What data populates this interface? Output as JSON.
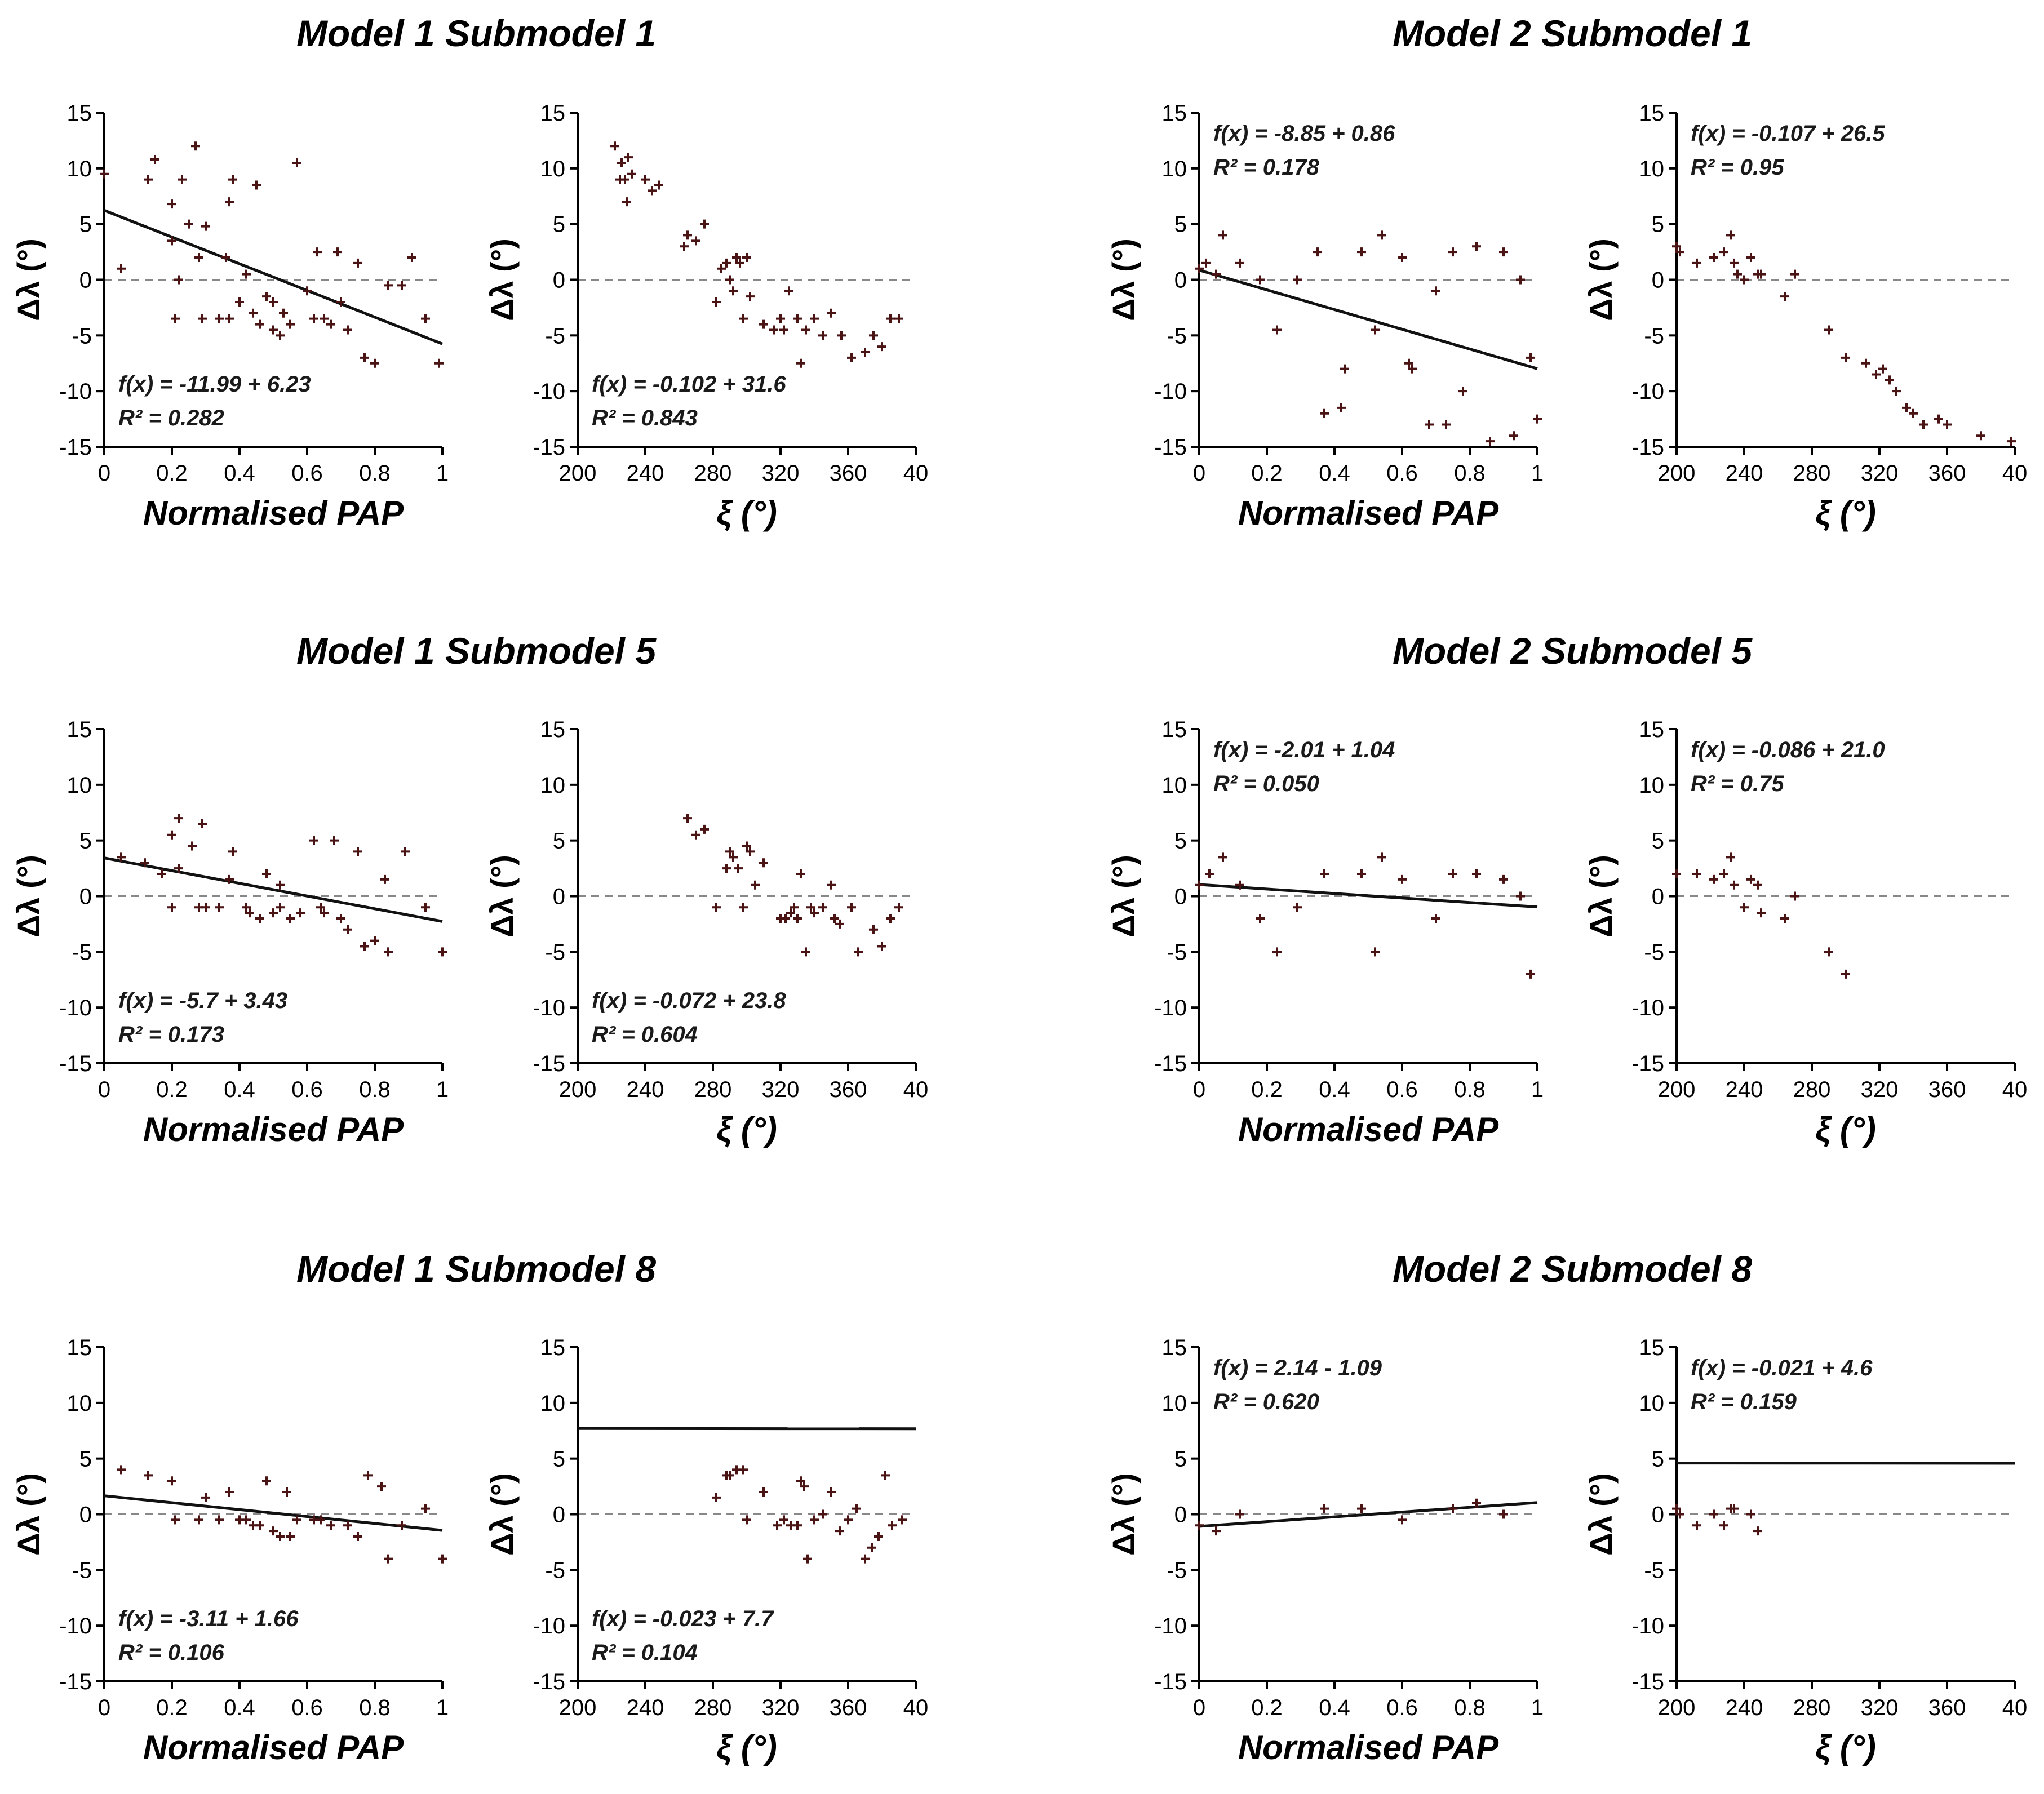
{
  "panel_titles": [
    "Model 1 Submodel 1",
    "Model 2 Submodel 1",
    "Model 1 Submodel 5",
    "Model 2 Submodel 5",
    "Model 1 Submodel 8",
    "Model 2 Submodel 8"
  ],
  "colors": {
    "points": "#4a1414",
    "fit_line": "#111111",
    "zero_line": "#888888"
  },
  "chart_data": [
    {
      "type": "scatter",
      "panel": "Model 1 Submodel 1",
      "xlabel": "Normalised PAP",
      "ylabel": "Δλ (°)",
      "xlim": [
        0,
        1
      ],
      "ylim": [
        -15,
        15
      ],
      "x_ticks": [
        "0",
        "0.2",
        "0.4",
        "0.6",
        "0.8",
        "1"
      ],
      "y_ticks": [
        "15",
        "10",
        "5",
        "0",
        "-5",
        "-10",
        "-15"
      ],
      "equation": "f(x) = -11.99 + 6.23",
      "r2_label": "R² = 0.282",
      "annotation_position": "bottom-left",
      "fit": {
        "slope": -11.99,
        "intercept": 6.23
      },
      "x": [
        0.0,
        0.05,
        0.13,
        0.15,
        0.2,
        0.2,
        0.21,
        0.22,
        0.23,
        0.25,
        0.27,
        0.28,
        0.29,
        0.3,
        0.34,
        0.36,
        0.37,
        0.37,
        0.38,
        0.4,
        0.42,
        0.44,
        0.45,
        0.46,
        0.48,
        0.5,
        0.5,
        0.52,
        0.53,
        0.55,
        0.57,
        0.6,
        0.62,
        0.63,
        0.65,
        0.67,
        0.69,
        0.7,
        0.72,
        0.75,
        0.77,
        0.8,
        0.84,
        0.88,
        0.91,
        0.95,
        0.99
      ],
      "y": [
        9.5,
        1.0,
        9.0,
        10.8,
        3.5,
        6.8,
        -3.5,
        0.0,
        9.0,
        5.0,
        12.0,
        2.0,
        -3.5,
        4.8,
        -3.5,
        2.0,
        -3.5,
        7.0,
        9.0,
        -2.0,
        0.5,
        -3.0,
        8.5,
        -4.0,
        -1.5,
        -2.0,
        -4.5,
        -5.0,
        -3.0,
        -4.0,
        10.5,
        -1.0,
        -3.5,
        2.5,
        -3.5,
        -4.0,
        2.5,
        -2.0,
        -4.5,
        1.5,
        -7.0,
        -7.5,
        -0.5,
        -0.5,
        2.0,
        -3.5,
        -7.5
      ]
    },
    {
      "type": "scatter",
      "panel": "Model 1 Submodel 1",
      "xlabel": "ξ (°)",
      "ylabel": "Δλ (°)",
      "xlim": [
        200,
        400
      ],
      "ylim": [
        -15,
        15
      ],
      "x_ticks": [
        "200",
        "240",
        "280",
        "320",
        "360",
        "40"
      ],
      "y_ticks": [
        "15",
        "10",
        "5",
        "0",
        "-5",
        "-10",
        "-15"
      ],
      "equation": "f(x) = -0.102 + 31.6",
      "r2_label": "R² = 0.843",
      "annotation_position": "bottom-left",
      "fit": {
        "slope": -0.102,
        "intercept": 31.6
      },
      "x": [
        222,
        225,
        226,
        228,
        229,
        230,
        232,
        240,
        244,
        248,
        263,
        265,
        270,
        275,
        282,
        285,
        288,
        290,
        292,
        294,
        296,
        298,
        300,
        302,
        310,
        316,
        320,
        322,
        325,
        330,
        332,
        335,
        340,
        345,
        350,
        356,
        362,
        370,
        375,
        380,
        385,
        390
      ],
      "y": [
        12.0,
        9.0,
        10.5,
        9.0,
        7.0,
        11.0,
        9.5,
        9.0,
        8.0,
        8.5,
        3.0,
        4.0,
        3.5,
        5.0,
        -2.0,
        1.0,
        1.5,
        0.0,
        -1.0,
        2.0,
        1.5,
        -3.5,
        2.0,
        -1.5,
        -4.0,
        -4.5,
        -3.5,
        -4.5,
        -1.0,
        -3.5,
        -7.5,
        -4.5,
        -3.5,
        -5.0,
        -3.0,
        -5.0,
        -7.0,
        -6.5,
        -5.0,
        -6.0,
        -3.5,
        -3.5
      ]
    },
    {
      "type": "scatter",
      "panel": "Model 2 Submodel 1",
      "xlabel": "Normalised PAP",
      "ylabel": "Δλ (°)",
      "xlim": [
        0,
        1
      ],
      "ylim": [
        -15,
        15
      ],
      "x_ticks": [
        "0",
        "0.2",
        "0.4",
        "0.6",
        "0.8",
        "1"
      ],
      "y_ticks": [
        "15",
        "10",
        "5",
        "0",
        "-5",
        "-10",
        "-15"
      ],
      "equation": "f(x) = -8.85 + 0.86",
      "r2_label": "R² = 0.178",
      "annotation_position": "top-left",
      "fit": {
        "slope": -8.85,
        "intercept": 0.86
      },
      "x": [
        0.0,
        0.02,
        0.05,
        0.07,
        0.12,
        0.18,
        0.23,
        0.29,
        0.35,
        0.37,
        0.42,
        0.43,
        0.48,
        0.52,
        0.54,
        0.6,
        0.62,
        0.63,
        0.68,
        0.7,
        0.73,
        0.75,
        0.78,
        0.82,
        0.86,
        0.9,
        0.93,
        0.95,
        0.98,
        1.0
      ],
      "y": [
        1.0,
        1.5,
        0.5,
        4.0,
        1.5,
        0.0,
        -4.5,
        0.0,
        2.5,
        -12.0,
        -11.5,
        -8.0,
        2.5,
        -4.5,
        4.0,
        2.0,
        -7.5,
        -8.0,
        -13.0,
        -1.0,
        -13.0,
        2.5,
        -10.0,
        3.0,
        -14.5,
        2.5,
        -14.0,
        0.0,
        -7.0,
        -12.5
      ]
    },
    {
      "type": "scatter",
      "panel": "Model 2 Submodel 1",
      "xlabel": "ξ (°)",
      "ylabel": "Δλ (°)",
      "xlim": [
        200,
        400
      ],
      "ylim": [
        -15,
        15
      ],
      "x_ticks": [
        "200",
        "240",
        "280",
        "320",
        "360",
        "40"
      ],
      "y_ticks": [
        "15",
        "10",
        "5",
        "0",
        "-5",
        "-10",
        "-15"
      ],
      "equation": "f(x) = -0.107 + 26.5",
      "r2_label": "R² = 0.95",
      "annotation_position": "top-left",
      "fit": {
        "slope": -0.107,
        "intercept": 26.5
      },
      "x": [
        200,
        202,
        212,
        222,
        228,
        232,
        234,
        236,
        240,
        244,
        248,
        250,
        264,
        270,
        290,
        300,
        312,
        318,
        322,
        326,
        330,
        336,
        340,
        346,
        355,
        360,
        380,
        398
      ],
      "y": [
        3.0,
        2.5,
        1.5,
        2.0,
        2.5,
        4.0,
        1.5,
        0.5,
        0.0,
        2.0,
        0.5,
        0.5,
        -1.5,
        0.5,
        -4.5,
        -7.0,
        -7.5,
        -8.5,
        -8.0,
        -9.0,
        -10.0,
        -11.5,
        -12.0,
        -13.0,
        -12.5,
        -13.0,
        -14.0,
        -14.5
      ]
    },
    {
      "type": "scatter",
      "panel": "Model 1 Submodel 5",
      "xlabel": "Normalised PAP",
      "ylabel": "Δλ (°)",
      "xlim": [
        0,
        1
      ],
      "ylim": [
        -15,
        15
      ],
      "x_ticks": [
        "0",
        "0.2",
        "0.4",
        "0.6",
        "0.8",
        "1"
      ],
      "y_ticks": [
        "15",
        "10",
        "5",
        "0",
        "-5",
        "-10",
        "-15"
      ],
      "equation": "f(x) = -5.7 + 3.43",
      "r2_label": "R² = 0.173",
      "annotation_position": "bottom-left",
      "fit": {
        "slope": -5.7,
        "intercept": 3.43
      },
      "x": [
        0.05,
        0.12,
        0.17,
        0.2,
        0.2,
        0.22,
        0.22,
        0.26,
        0.28,
        0.29,
        0.3,
        0.34,
        0.37,
        0.38,
        0.42,
        0.43,
        0.46,
        0.48,
        0.5,
        0.52,
        0.52,
        0.55,
        0.58,
        0.62,
        0.64,
        0.65,
        0.68,
        0.7,
        0.72,
        0.75,
        0.77,
        0.8,
        0.83,
        0.84,
        0.89,
        0.95,
        1.0
      ],
      "y": [
        3.5,
        3.0,
        2.0,
        5.5,
        -1.0,
        7.0,
        2.5,
        4.5,
        -1.0,
        6.5,
        -1.0,
        -1.0,
        1.5,
        4.0,
        -1.0,
        -1.5,
        -2.0,
        2.0,
        -1.5,
        1.0,
        -1.0,
        -2.0,
        -1.5,
        5.0,
        -1.0,
        -1.5,
        5.0,
        -2.0,
        -3.0,
        4.0,
        -4.5,
        -4.0,
        1.5,
        -5.0,
        4.0,
        -1.0,
        -5.0
      ]
    },
    {
      "type": "scatter",
      "panel": "Model 1 Submodel 5",
      "xlabel": "ξ (°)",
      "ylabel": "Δλ (°)",
      "xlim": [
        200,
        400
      ],
      "ylim": [
        -15,
        15
      ],
      "x_ticks": [
        "200",
        "240",
        "280",
        "320",
        "360",
        "40"
      ],
      "y_ticks": [
        "15",
        "10",
        "5",
        "0",
        "-5",
        "-10",
        "-15"
      ],
      "equation": "f(x) = -0.072 + 23.8",
      "r2_label": "R² = 0.604",
      "annotation_position": "bottom-left",
      "fit": {
        "slope": -0.072,
        "intercept": 23.8
      },
      "x": [
        265,
        270,
        275,
        282,
        288,
        290,
        292,
        295,
        298,
        300,
        302,
        305,
        310,
        320,
        323,
        326,
        328,
        330,
        332,
        335,
        338,
        340,
        345,
        350,
        352,
        355,
        362,
        366,
        375,
        380,
        385,
        390
      ],
      "y": [
        7.0,
        5.5,
        6.0,
        -1.0,
        2.5,
        4.0,
        3.5,
        2.5,
        -1.0,
        4.5,
        4.0,
        1.0,
        3.0,
        -2.0,
        -2.0,
        -1.5,
        -1.0,
        -2.0,
        2.0,
        -5.0,
        -1.0,
        -1.5,
        -1.0,
        1.0,
        -2.0,
        -2.5,
        -1.0,
        -5.0,
        -3.0,
        -4.5,
        -2.0,
        -1.0
      ]
    },
    {
      "type": "scatter",
      "panel": "Model 2 Submodel 5",
      "xlabel": "Normalised PAP",
      "ylabel": "Δλ (°)",
      "xlim": [
        0,
        1
      ],
      "ylim": [
        -15,
        15
      ],
      "x_ticks": [
        "0",
        "0.2",
        "0.4",
        "0.6",
        "0.8",
        "1"
      ],
      "y_ticks": [
        "15",
        "10",
        "5",
        "0",
        "-5",
        "-10",
        "-15"
      ],
      "equation": "f(x) = -2.01 + 1.04",
      "r2_label": "R² = 0.050",
      "annotation_position": "top-left",
      "fit": {
        "slope": -2.01,
        "intercept": 1.04
      },
      "x": [
        0.0,
        0.03,
        0.07,
        0.12,
        0.18,
        0.23,
        0.29,
        0.37,
        0.48,
        0.52,
        0.54,
        0.6,
        0.7,
        0.75,
        0.82,
        0.9,
        0.95,
        0.98
      ],
      "y": [
        1.0,
        2.0,
        3.5,
        1.0,
        -2.0,
        -5.0,
        -1.0,
        2.0,
        2.0,
        -5.0,
        3.5,
        1.5,
        -2.0,
        2.0,
        2.0,
        1.5,
        0.0,
        -7.0
      ]
    },
    {
      "type": "scatter",
      "panel": "Model 2 Submodel 5",
      "xlabel": "ξ (°)",
      "ylabel": "Δλ (°)",
      "xlim": [
        200,
        400
      ],
      "ylim": [
        -15,
        15
      ],
      "x_ticks": [
        "200",
        "240",
        "280",
        "320",
        "360",
        "40"
      ],
      "y_ticks": [
        "15",
        "10",
        "5",
        "0",
        "-5",
        "-10",
        "-15"
      ],
      "equation": "f(x) = -0.086 + 21.0",
      "r2_label": "R² = 0.75",
      "annotation_position": "top-left",
      "fit": {
        "slope": -0.086,
        "intercept": 21.0
      },
      "x": [
        200,
        212,
        222,
        228,
        232,
        234,
        240,
        244,
        248,
        250,
        264,
        270,
        290,
        300
      ],
      "y": [
        2.0,
        2.0,
        1.5,
        2.0,
        3.5,
        1.0,
        -1.0,
        1.5,
        1.0,
        -1.5,
        -2.0,
        0.0,
        -5.0,
        -7.0
      ]
    },
    {
      "type": "scatter",
      "panel": "Model 1 Submodel 8",
      "xlabel": "Normalised PAP",
      "ylabel": "Δλ (°)",
      "xlim": [
        0,
        1
      ],
      "ylim": [
        -15,
        15
      ],
      "x_ticks": [
        "0",
        "0.2",
        "0.4",
        "0.6",
        "0.8",
        "1"
      ],
      "y_ticks": [
        "15",
        "10",
        "5",
        "0",
        "-5",
        "-10",
        "-15"
      ],
      "equation": "f(x) = -3.11 + 1.66",
      "r2_label": "R² = 0.106",
      "annotation_position": "bottom-left",
      "fit": {
        "slope": -3.11,
        "intercept": 1.66
      },
      "x": [
        0.05,
        0.13,
        0.2,
        0.21,
        0.28,
        0.3,
        0.34,
        0.37,
        0.4,
        0.42,
        0.44,
        0.46,
        0.48,
        0.5,
        0.52,
        0.54,
        0.55,
        0.57,
        0.62,
        0.64,
        0.67,
        0.72,
        0.75,
        0.78,
        0.82,
        0.84,
        0.88,
        0.95,
        1.0
      ],
      "y": [
        4.0,
        3.5,
        3.0,
        -0.5,
        -0.5,
        1.5,
        -0.5,
        2.0,
        -0.5,
        -0.5,
        -1.0,
        -1.0,
        3.0,
        -1.5,
        -2.0,
        2.0,
        -2.0,
        -0.5,
        -0.5,
        -0.5,
        -1.0,
        -1.0,
        -2.0,
        3.5,
        2.5,
        -4.0,
        -1.0,
        0.5,
        -4.0
      ]
    },
    {
      "type": "scatter",
      "panel": "Model 1 Submodel 8",
      "xlabel": "ξ (°)",
      "ylabel": "Δλ (°)",
      "xlim": [
        200,
        400
      ],
      "ylim": [
        -15,
        15
      ],
      "x_ticks": [
        "200",
        "240",
        "280",
        "320",
        "360",
        "40"
      ],
      "y_ticks": [
        "15",
        "10",
        "5",
        "0",
        "-5",
        "-10",
        "-15"
      ],
      "equation": "f(x) = -0.023 + 7.7",
      "r2_label": "R² = 0.104",
      "annotation_position": "bottom-left",
      "fit": {
        "slope": -0.023,
        "intercept": 7.7
      },
      "x": [
        282,
        288,
        290,
        294,
        298,
        300,
        310,
        318,
        322,
        326,
        330,
        332,
        334,
        336,
        340,
        345,
        350,
        355,
        360,
        365,
        370,
        374,
        378,
        382,
        386,
        392
      ],
      "y": [
        1.5,
        3.5,
        3.5,
        4.0,
        4.0,
        -0.5,
        2.0,
        -1.0,
        -0.5,
        -1.0,
        -1.0,
        3.0,
        2.5,
        -4.0,
        -0.5,
        0.0,
        2.0,
        -1.5,
        -0.5,
        0.5,
        -4.0,
        -3.0,
        -2.0,
        3.5,
        -1.0,
        -0.5
      ]
    },
    {
      "type": "scatter",
      "panel": "Model 2 Submodel 8",
      "xlabel": "Normalised PAP",
      "ylabel": "Δλ (°)",
      "xlim": [
        0,
        1
      ],
      "ylim": [
        -15,
        15
      ],
      "x_ticks": [
        "0",
        "0.2",
        "0.4",
        "0.6",
        "0.8",
        "1"
      ],
      "y_ticks": [
        "15",
        "10",
        "5",
        "0",
        "-5",
        "-10",
        "-15"
      ],
      "equation": "f(x) = 2.14 - 1.09",
      "r2_label": "R² = 0.620",
      "annotation_position": "top-left",
      "fit": {
        "slope": 2.14,
        "intercept": -1.09
      },
      "x": [
        0.0,
        0.05,
        0.12,
        0.37,
        0.48,
        0.6,
        0.75,
        0.82,
        0.9
      ],
      "y": [
        -1.0,
        -1.5,
        0.0,
        0.5,
        0.5,
        -0.5,
        0.5,
        1.0,
        0.0
      ]
    },
    {
      "type": "scatter",
      "panel": "Model 2 Submodel 8",
      "xlabel": "ξ (°)",
      "ylabel": "Δλ (°)",
      "xlim": [
        200,
        400
      ],
      "ylim": [
        -15,
        15
      ],
      "x_ticks": [
        "200",
        "240",
        "280",
        "320",
        "360",
        "40"
      ],
      "y_ticks": [
        "15",
        "10",
        "5",
        "0",
        "-5",
        "-10",
        "-15"
      ],
      "equation": "f(x) = -0.021 + 4.6",
      "r2_label": "R² = 0.159",
      "annotation_position": "top-left",
      "fit": {
        "slope": -0.021,
        "intercept": 4.6
      },
      "x": [
        200,
        202,
        212,
        222,
        228,
        232,
        234,
        244,
        248
      ],
      "y": [
        0.5,
        0.0,
        -1.0,
        0.0,
        -1.0,
        0.5,
        0.5,
        0.0,
        -1.5
      ]
    }
  ]
}
